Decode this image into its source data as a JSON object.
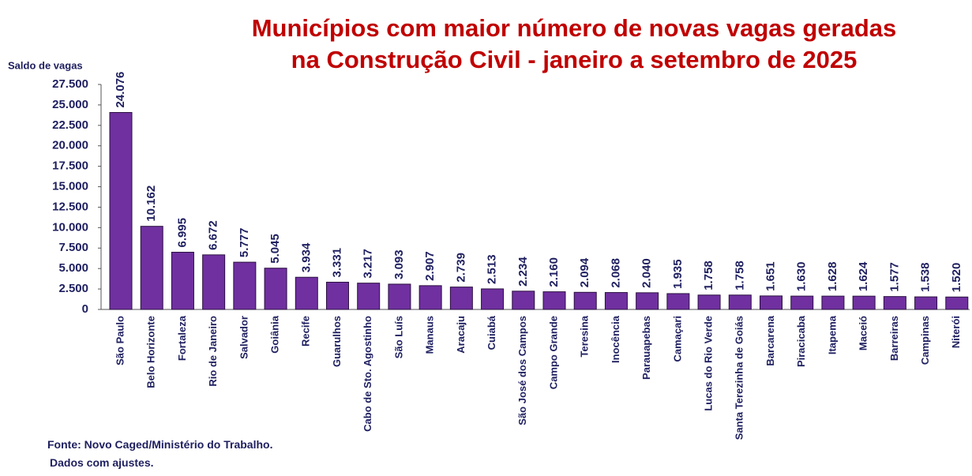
{
  "chart_data": {
    "type": "bar",
    "title": [
      "Municípios com maior número de novas vagas geradas",
      "na Construção Civil - janeiro a setembro de 2025"
    ],
    "y_label": "Saldo de vagas",
    "note": [
      "Fonte:  Novo Caged/Ministério do Trabalho.",
      "Dados com ajustes."
    ],
    "categories": [
      "São Paulo",
      "Belo Horizonte",
      "Fortaleza",
      "Rio de Janeiro",
      "Salvador",
      "Goiânia",
      "Recife",
      "Guarulhos",
      "Cabo de Sto. Agostinho",
      "São Luís",
      "Manaus",
      "Aracaju",
      "Cuiabá",
      "São José dos Campos",
      "Campo Grande",
      "Teresina",
      "Inocência",
      "Parauapebas",
      "Camaçari",
      "Lucas do Rio Verde",
      "Santa Terezinha de Goiás",
      "Barcarena",
      "Piracicaba",
      "Itapema",
      "Maceió",
      "Barreiras",
      "Campinas",
      "Niterói"
    ],
    "values": [
      24076,
      10162,
      6995,
      6672,
      5777,
      5045,
      3934,
      3331,
      3217,
      3093,
      2907,
      2739,
      2513,
      2234,
      2160,
      2094,
      2068,
      2040,
      1935,
      1758,
      1758,
      1651,
      1630,
      1628,
      1624,
      1577,
      1538,
      1520
    ],
    "value_labels": [
      "24.076",
      "10.162",
      "6.995",
      "6.672",
      "5.777",
      "5.045",
      "3.934",
      "3.331",
      "3.217",
      "3.093",
      "2.907",
      "2.739",
      "2.513",
      "2.234",
      "2.160",
      "2.094",
      "2.068",
      "2.040",
      "1.935",
      "1.758",
      "1.758",
      "1.651",
      "1.630",
      "1.628",
      "1.624",
      "1.577",
      "1.538",
      "1.520"
    ],
    "color": "#7030a0",
    "ylim": [
      0,
      27500
    ],
    "yticks": [
      0,
      {
        "value": 2500,
        "label": "2.500"
      },
      {
        "value": 5000,
        "label": "5.000"
      },
      {
        "value": 7500,
        "label": "7.500"
      },
      {
        "value": 10000,
        "label": "10.000"
      },
      {
        "value": 12500,
        "label": "12.500"
      },
      {
        "value": 15000,
        "label": "15.000"
      },
      {
        "value": 17500,
        "label": "17.500"
      },
      {
        "value": 20000,
        "label": "20.000"
      },
      {
        "value": 22500,
        "label": "22.500"
      },
      {
        "value": 25000,
        "label": "25.000"
      },
      {
        "value": 27500,
        "label": "27.500"
      }
    ],
    "grid": false
  }
}
